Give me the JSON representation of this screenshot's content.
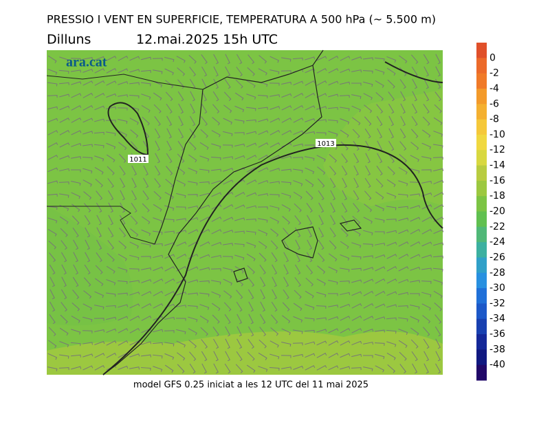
{
  "header": {
    "title": "PRESSIO I VENT EN SUPERFICIE, TEMPERATURA A 500 hPa (~ 5.500 m)",
    "day": "Dilluns",
    "date": "12.mai.2025 15h UTC"
  },
  "map": {
    "logo": "ara.cat",
    "isobar_labels": [
      "1011",
      "1013"
    ]
  },
  "colorbar": {
    "ticks": [
      0,
      -2,
      -4,
      -6,
      -8,
      -10,
      -12,
      -14,
      -16,
      -18,
      -20,
      -22,
      -24,
      -26,
      -28,
      -30,
      -32,
      -34,
      -36,
      -38,
      -40
    ],
    "colors": [
      "#e0502a",
      "#ec6a2a",
      "#f07a28",
      "#f39a2a",
      "#f4b030",
      "#f5c83a",
      "#f0d840",
      "#d8d840",
      "#b8cc40",
      "#9cc840",
      "#7cc444",
      "#60c050",
      "#50b878",
      "#3cb0a0",
      "#30a0c8",
      "#2890e0",
      "#2070d8",
      "#1c58c8",
      "#1840b0",
      "#142898",
      "#101880",
      "#200868"
    ]
  },
  "footer": "model GFS 0.25 iniciat a les 12 UTC del 11 mai 2025"
}
